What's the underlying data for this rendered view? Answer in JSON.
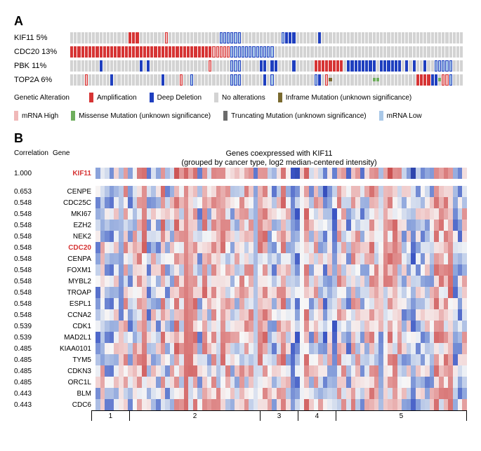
{
  "panelA": {
    "label": "A",
    "legend_title": "Genetic Alteration",
    "legend": [
      {
        "name": "Amplification",
        "color": "#d63434"
      },
      {
        "name": "Deep Deletion",
        "color": "#1f3fbf"
      },
      {
        "name": "No alterations",
        "color": "#d3d3d3"
      },
      {
        "name": "Inframe Mutation (unknown significance)",
        "color": "#7a6a2f"
      },
      {
        "name": "mRNA High",
        "color": "#f0b8b8"
      },
      {
        "name": "Missense Mutation (unknown significance)",
        "color": "#6fae5d"
      },
      {
        "name": "Truncating Mutation (unknown significance)",
        "color": "#6c6c6c"
      },
      {
        "name": "mRNA Low",
        "color": "#a9c8e8"
      }
    ],
    "colors": {
      "amp": "#d63434",
      "del": "#1f3fbf",
      "none": "#d3d3d3",
      "inframe": "#7a6a2f",
      "high": "#f0b8b8",
      "miss": "#6fae5d",
      "trunc": "#6c6c6c",
      "low": "#a9c8e8"
    },
    "n_samples": 108,
    "genes": [
      {
        "name": "KIF11",
        "pct": "5%",
        "alts": [
          {
            "i": 16,
            "c": "amp"
          },
          {
            "i": 17,
            "c": "amp"
          },
          {
            "i": 18,
            "c": "amp"
          },
          {
            "i": 26,
            "c": "high"
          },
          {
            "i": 41,
            "c": "low"
          },
          {
            "i": 42,
            "c": "low"
          },
          {
            "i": 43,
            "c": "low"
          },
          {
            "i": 44,
            "c": "low"
          },
          {
            "i": 45,
            "c": "low"
          },
          {
            "i": 46,
            "c": "low"
          },
          {
            "i": 58,
            "c": "low"
          },
          {
            "i": 59,
            "c": "del"
          },
          {
            "i": 60,
            "c": "del"
          },
          {
            "i": 61,
            "c": "del"
          },
          {
            "i": 68,
            "c": "del"
          }
        ]
      },
      {
        "name": "CDC20",
        "pct": "13%",
        "alts": [
          {
            "i": 0,
            "c": "amp"
          },
          {
            "i": 1,
            "c": "amp"
          },
          {
            "i": 2,
            "c": "amp"
          },
          {
            "i": 3,
            "c": "amp"
          },
          {
            "i": 4,
            "c": "amp"
          },
          {
            "i": 5,
            "c": "amp"
          },
          {
            "i": 6,
            "c": "amp"
          },
          {
            "i": 7,
            "c": "amp"
          },
          {
            "i": 8,
            "c": "amp"
          },
          {
            "i": 9,
            "c": "amp"
          },
          {
            "i": 10,
            "c": "amp"
          },
          {
            "i": 11,
            "c": "amp"
          },
          {
            "i": 12,
            "c": "amp"
          },
          {
            "i": 13,
            "c": "amp"
          },
          {
            "i": 14,
            "c": "amp"
          },
          {
            "i": 15,
            "c": "amp"
          },
          {
            "i": 16,
            "c": "amp"
          },
          {
            "i": 17,
            "c": "amp"
          },
          {
            "i": 18,
            "c": "amp"
          },
          {
            "i": 19,
            "c": "amp"
          },
          {
            "i": 20,
            "c": "amp"
          },
          {
            "i": 21,
            "c": "amp"
          },
          {
            "i": 22,
            "c": "amp"
          },
          {
            "i": 23,
            "c": "amp"
          },
          {
            "i": 24,
            "c": "amp"
          },
          {
            "i": 25,
            "c": "amp"
          },
          {
            "i": 26,
            "c": "amp"
          },
          {
            "i": 27,
            "c": "amp"
          },
          {
            "i": 28,
            "c": "amp"
          },
          {
            "i": 29,
            "c": "amp"
          },
          {
            "i": 30,
            "c": "amp"
          },
          {
            "i": 31,
            "c": "amp"
          },
          {
            "i": 32,
            "c": "amp"
          },
          {
            "i": 33,
            "c": "amp"
          },
          {
            "i": 34,
            "c": "amp"
          },
          {
            "i": 35,
            "c": "amp"
          },
          {
            "i": 36,
            "c": "amp"
          },
          {
            "i": 37,
            "c": "amp"
          },
          {
            "i": 38,
            "c": "amp"
          },
          {
            "i": 39,
            "c": "high"
          },
          {
            "i": 40,
            "c": "high"
          },
          {
            "i": 41,
            "c": "high"
          },
          {
            "i": 42,
            "c": "high"
          },
          {
            "i": 43,
            "c": "high"
          },
          {
            "i": 44,
            "c": "low"
          },
          {
            "i": 45,
            "c": "low"
          },
          {
            "i": 46,
            "c": "low"
          },
          {
            "i": 47,
            "c": "low"
          },
          {
            "i": 48,
            "c": "low"
          },
          {
            "i": 49,
            "c": "low"
          },
          {
            "i": 50,
            "c": "low"
          },
          {
            "i": 51,
            "c": "low"
          },
          {
            "i": 52,
            "c": "low"
          },
          {
            "i": 53,
            "c": "low"
          },
          {
            "i": 54,
            "c": "low"
          },
          {
            "i": 55,
            "c": "low"
          }
        ]
      },
      {
        "name": "PBK",
        "pct": "11%",
        "alts": [
          {
            "i": 8,
            "c": "del"
          },
          {
            "i": 19,
            "c": "del"
          },
          {
            "i": 21,
            "c": "del"
          },
          {
            "i": 38,
            "c": "high"
          },
          {
            "i": 44,
            "c": "low"
          },
          {
            "i": 45,
            "c": "low"
          },
          {
            "i": 46,
            "c": "low"
          },
          {
            "i": 52,
            "c": "del"
          },
          {
            "i": 53,
            "c": "del"
          },
          {
            "i": 55,
            "c": "del"
          },
          {
            "i": 56,
            "c": "del"
          },
          {
            "i": 61,
            "c": "del"
          },
          {
            "i": 67,
            "c": "amp"
          },
          {
            "i": 68,
            "c": "amp"
          },
          {
            "i": 69,
            "c": "amp"
          },
          {
            "i": 70,
            "c": "amp"
          },
          {
            "i": 71,
            "c": "amp"
          },
          {
            "i": 72,
            "c": "amp"
          },
          {
            "i": 73,
            "c": "amp"
          },
          {
            "i": 74,
            "c": "amp"
          },
          {
            "i": 76,
            "c": "del"
          },
          {
            "i": 77,
            "c": "del"
          },
          {
            "i": 78,
            "c": "del"
          },
          {
            "i": 79,
            "c": "del"
          },
          {
            "i": 80,
            "c": "del"
          },
          {
            "i": 81,
            "c": "del"
          },
          {
            "i": 82,
            "c": "del"
          },
          {
            "i": 83,
            "c": "del"
          },
          {
            "i": 85,
            "c": "del"
          },
          {
            "i": 86,
            "c": "del"
          },
          {
            "i": 87,
            "c": "del"
          },
          {
            "i": 88,
            "c": "del"
          },
          {
            "i": 89,
            "c": "del"
          },
          {
            "i": 90,
            "c": "del"
          },
          {
            "i": 92,
            "c": "del"
          },
          {
            "i": 94,
            "c": "del"
          },
          {
            "i": 97,
            "c": "del"
          },
          {
            "i": 100,
            "c": "low"
          },
          {
            "i": 101,
            "c": "low"
          },
          {
            "i": 102,
            "c": "low"
          },
          {
            "i": 103,
            "c": "low"
          },
          {
            "i": 104,
            "c": "low"
          }
        ]
      },
      {
        "name": "TOP2A",
        "pct": "6%",
        "alts": [
          {
            "i": 4,
            "c": "high"
          },
          {
            "i": 11,
            "c": "del"
          },
          {
            "i": 25,
            "c": "del"
          },
          {
            "i": 30,
            "c": "high"
          },
          {
            "i": 33,
            "c": "low"
          },
          {
            "i": 44,
            "c": "low"
          },
          {
            "i": 45,
            "c": "low"
          },
          {
            "i": 46,
            "c": "low"
          },
          {
            "i": 53,
            "c": "del"
          },
          {
            "i": 55,
            "c": "low"
          },
          {
            "i": 67,
            "c": "low"
          },
          {
            "i": 68,
            "c": "del"
          },
          {
            "i": 70,
            "c": "high"
          },
          {
            "i": 71,
            "c": "inframe"
          },
          {
            "i": 83,
            "c": "miss"
          },
          {
            "i": 84,
            "c": "miss"
          },
          {
            "i": 95,
            "c": "amp"
          },
          {
            "i": 96,
            "c": "amp"
          },
          {
            "i": 97,
            "c": "amp"
          },
          {
            "i": 98,
            "c": "amp"
          },
          {
            "i": 99,
            "c": "del"
          },
          {
            "i": 100,
            "c": "del"
          },
          {
            "i": 101,
            "c": "miss"
          },
          {
            "i": 102,
            "c": "high"
          },
          {
            "i": 103,
            "c": "high"
          },
          {
            "i": 104,
            "c": "low"
          }
        ]
      }
    ]
  },
  "panelB": {
    "label": "B",
    "title": "Genes coexpressed with KIF11",
    "subtitle": "(grouped by cancer type, log2 median-centered intensity)",
    "corr_header": "Correlation",
    "gene_header": "Gene",
    "n_cols": 80,
    "groups": [
      {
        "label": "1",
        "width": 8
      },
      {
        "label": "2",
        "width": 28
      },
      {
        "label": "3",
        "width": 8
      },
      {
        "label": "4",
        "width": 8
      },
      {
        "label": "5",
        "width": 28
      }
    ],
    "scale_colors": {
      "-3": "#1c2f8f",
      "-2": "#3b55c4",
      "-1": "#8da5dc",
      "-0.5": "#c4d1ea",
      "0": "#f7f7f7",
      "0.5": "#f0cccc",
      "1": "#e39a9a",
      "2": "#d15f5f",
      "3": "#b22020"
    },
    "genes": [
      {
        "corr": "1.000",
        "name": "KIF11",
        "highlight": true,
        "seed": 1
      },
      {
        "corr": "0.653",
        "name": "CENPE",
        "seed": 2
      },
      {
        "corr": "0.548",
        "name": "CDC25C",
        "seed": 3
      },
      {
        "corr": "0.548",
        "name": "MKI67",
        "seed": 4
      },
      {
        "corr": "0.548",
        "name": "EZH2",
        "seed": 5
      },
      {
        "corr": "0.548",
        "name": "NEK2",
        "seed": 6
      },
      {
        "corr": "0.548",
        "name": "CDC20",
        "highlight": true,
        "seed": 7
      },
      {
        "corr": "0.548",
        "name": "CENPA",
        "seed": 8
      },
      {
        "corr": "0.548",
        "name": "FOXM1",
        "seed": 9
      },
      {
        "corr": "0.548",
        "name": "MYBL2",
        "seed": 10
      },
      {
        "corr": "0.548",
        "name": "TROAP",
        "seed": 11
      },
      {
        "corr": "0.548",
        "name": "ESPL1",
        "seed": 12
      },
      {
        "corr": "0.548",
        "name": "CCNA2",
        "seed": 13
      },
      {
        "corr": "0.539",
        "name": "CDK1",
        "seed": 14
      },
      {
        "corr": "0.539",
        "name": "MAD2L1",
        "seed": 15
      },
      {
        "corr": "0.485",
        "name": "KIAA0101",
        "seed": 16
      },
      {
        "corr": "0.485",
        "name": "TYM5",
        "seed": 17
      },
      {
        "corr": "0.485",
        "name": "CDKN3",
        "seed": 18
      },
      {
        "corr": "0.485",
        "name": "ORC1L",
        "seed": 19
      },
      {
        "corr": "0.443",
        "name": "BLM",
        "seed": 20
      },
      {
        "corr": "0.443",
        "name": "CDC6",
        "seed": 21
      }
    ]
  }
}
